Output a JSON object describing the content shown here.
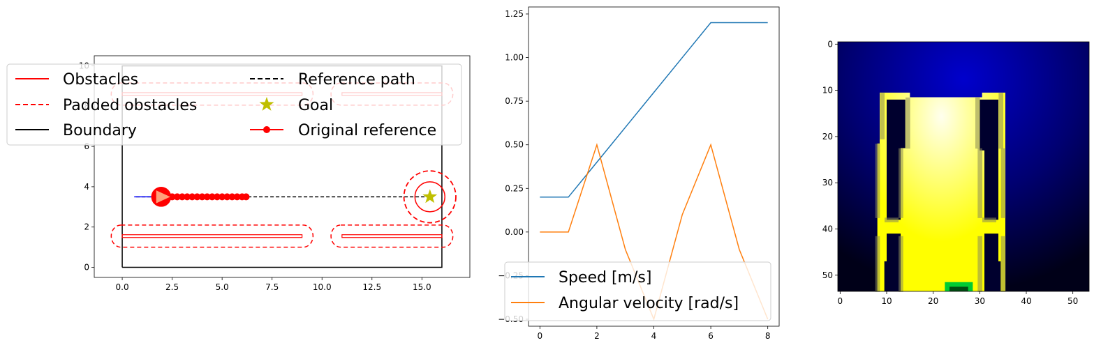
{
  "chart_data": [
    {
      "type": "line",
      "title": "",
      "xlabel": "",
      "ylabel": "",
      "xlim": [
        -1.4,
        17.4
      ],
      "ylim": [
        -0.5,
        10.5
      ],
      "xticks": [
        0.0,
        2.5,
        5.0,
        7.5,
        10.0,
        12.5,
        15.0
      ],
      "xtick_labels": [
        "0.0",
        "2.5",
        "5.0",
        "7.5",
        "10.0",
        "12.5",
        "15.0"
      ],
      "yticks": [
        0,
        2,
        4,
        6,
        8,
        10
      ],
      "ytick_labels": [
        "0",
        "2",
        "4",
        "6",
        "8",
        "10"
      ],
      "legend": {
        "placement": "upper-left",
        "entries": [
          {
            "label": "Obstacles",
            "style": "solid",
            "color": "#ff0000"
          },
          {
            "label": "Padded obstacles",
            "style": "dashed",
            "color": "#ff0000"
          },
          {
            "label": "Boundary",
            "style": "solid",
            "color": "#000000"
          },
          {
            "label": "Reference path",
            "style": "dashed",
            "color": "#000000"
          },
          {
            "label": "Goal",
            "style": "star",
            "color": "#bfbf00"
          },
          {
            "label": "Original reference",
            "style": "line-marker",
            "color": "#ff0000"
          }
        ]
      },
      "boundary": {
        "x": [
          0,
          16,
          16,
          0,
          0
        ],
        "y": [
          0,
          0,
          10,
          10,
          0
        ]
      },
      "obstacles": [
        {
          "x": [
            0,
            9
          ],
          "y": [
            1.55,
            1.55
          ]
        },
        {
          "x": [
            11,
            16
          ],
          "y": [
            1.55,
            1.55
          ]
        },
        {
          "x": [
            0,
            9
          ],
          "y": [
            8.6,
            8.6
          ]
        },
        {
          "x": [
            11,
            16
          ],
          "y": [
            8.6,
            8.6
          ]
        }
      ],
      "padded_obstacles": [
        {
          "x0": 0,
          "x1": 9,
          "y": 1.55,
          "pad": 0.55
        },
        {
          "x0": 11,
          "x1": 16,
          "y": 1.55,
          "pad": 0.55
        },
        {
          "x0": 0,
          "x1": 9,
          "y": 8.6,
          "pad": 0.55
        },
        {
          "x0": 11,
          "x1": 16,
          "y": 8.6,
          "pad": 0.55
        }
      ],
      "reference_path": {
        "x": [
          0.7,
          15.4
        ],
        "y": [
          3.5,
          3.5
        ]
      },
      "original_reference": {
        "x": [
          1.95,
          2.5,
          2.75,
          3.0,
          3.25,
          3.5,
          3.75,
          4.0,
          4.25,
          4.5,
          4.75,
          5.0,
          5.25,
          5.5,
          5.75,
          6.0,
          6.2
        ],
        "y": [
          3.5,
          3.5,
          3.5,
          3.5,
          3.5,
          3.5,
          3.5,
          3.5,
          3.5,
          3.5,
          3.5,
          3.5,
          3.5,
          3.5,
          3.5,
          3.5,
          3.5
        ]
      },
      "traveled_path": {
        "x": [
          0.6,
          1.95
        ],
        "y": [
          3.5,
          3.5
        ],
        "color": "#0000ff"
      },
      "robot": {
        "x": 1.95,
        "y": 3.5,
        "radius": 0.5,
        "color": "#ff0000",
        "heading_color": "#ffa07a"
      },
      "goal": {
        "x": 15.4,
        "y": 3.5,
        "circle_radius": 0.75,
        "padded_radius": 1.3,
        "color": "#bfbf00"
      }
    },
    {
      "type": "line",
      "title": "",
      "xlabel": "",
      "ylabel": "",
      "xlim": [
        -0.4,
        8.4
      ],
      "ylim": [
        -0.54,
        1.29
      ],
      "xticks": [
        0,
        2,
        4,
        6,
        8
      ],
      "xtick_labels": [
        "0",
        "2",
        "4",
        "6",
        "8"
      ],
      "yticks": [
        -0.5,
        -0.25,
        0.0,
        0.25,
        0.5,
        0.75,
        1.0,
        1.25
      ],
      "ytick_labels": [
        "−0.50",
        "−0.25",
        "0.00",
        "0.25",
        "0.50",
        "0.75",
        "1.00",
        "1.25"
      ],
      "x": [
        0,
        1,
        2,
        3,
        4,
        5,
        6,
        7,
        8
      ],
      "legend": {
        "placement": "lower-left"
      },
      "series": [
        {
          "name": "Speed [m/s]",
          "color": "#1f77b4",
          "values": [
            0.2,
            0.2,
            0.4,
            0.6,
            0.8,
            1.0,
            1.2,
            1.2,
            1.2
          ]
        },
        {
          "name": "Angular velocity [rad/s]",
          "color": "#ff7f0e",
          "values": [
            0.0,
            0.0,
            0.5,
            -0.1,
            -0.5,
            0.1,
            0.5,
            -0.1,
            -0.5
          ]
        }
      ]
    },
    {
      "type": "heatmap",
      "title": "",
      "xlabel": "",
      "ylabel": "",
      "xlim": [
        -0.5,
        53.5
      ],
      "ylim": [
        53.5,
        -0.5
      ],
      "xticks": [
        0,
        10,
        20,
        30,
        40,
        50
      ],
      "xtick_labels": [
        "0",
        "10",
        "20",
        "30",
        "40",
        "50"
      ],
      "yticks": [
        0,
        10,
        20,
        30,
        40,
        50
      ],
      "ytick_labels": [
        "0",
        "10",
        "20",
        "30",
        "40",
        "50"
      ],
      "colors": {
        "background_top": "#0000cc",
        "background_edge": "#000018",
        "free_center": "#ffffee",
        "free_edge": "#ffff00",
        "marker": "#00cc33"
      },
      "free_region": {
        "x": [
          8,
          36
        ],
        "y": [
          11,
          53
        ]
      }
    }
  ]
}
